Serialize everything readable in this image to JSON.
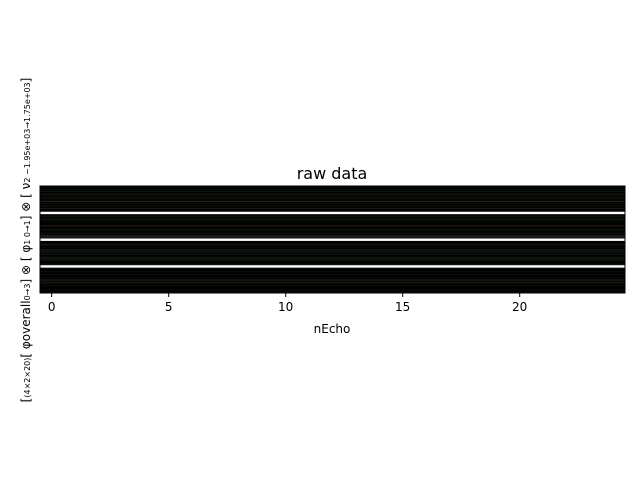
{
  "chart_data": {
    "type": "heatmap",
    "title": "raw data",
    "xlabel": "nEcho",
    "ylabel": {
      "parts": [
        {
          "text": "[",
          "sub": false
        },
        {
          "text": "(4×2×20)",
          "sub": true
        },
        {
          "text": "[ φoverall",
          "sub": false
        },
        {
          "text": "0→3",
          "sub": true
        },
        {
          "text": "] ⊗ [ φ",
          "sub": false
        },
        {
          "text": "1",
          "sub": true
        },
        {
          "text": " 0→1",
          "sub": true
        },
        {
          "text": "] ⊗ [ ν",
          "sub": false
        },
        {
          "text": "2",
          "sub": true
        },
        {
          "text": " −1.95e+03→1.75e+03",
          "sub": true
        },
        {
          "text": "]",
          "sub": false
        }
      ]
    },
    "xlim": [
      -0.5,
      24.5
    ],
    "x_ticks": [
      0,
      5,
      10,
      15,
      20
    ],
    "n_columns": 25,
    "n_rows": 160,
    "grid": false,
    "white_separator_after_rows": [
      40,
      80,
      120
    ],
    "colormap": "complex (dark, mostly black with faint green/red tints)"
  }
}
